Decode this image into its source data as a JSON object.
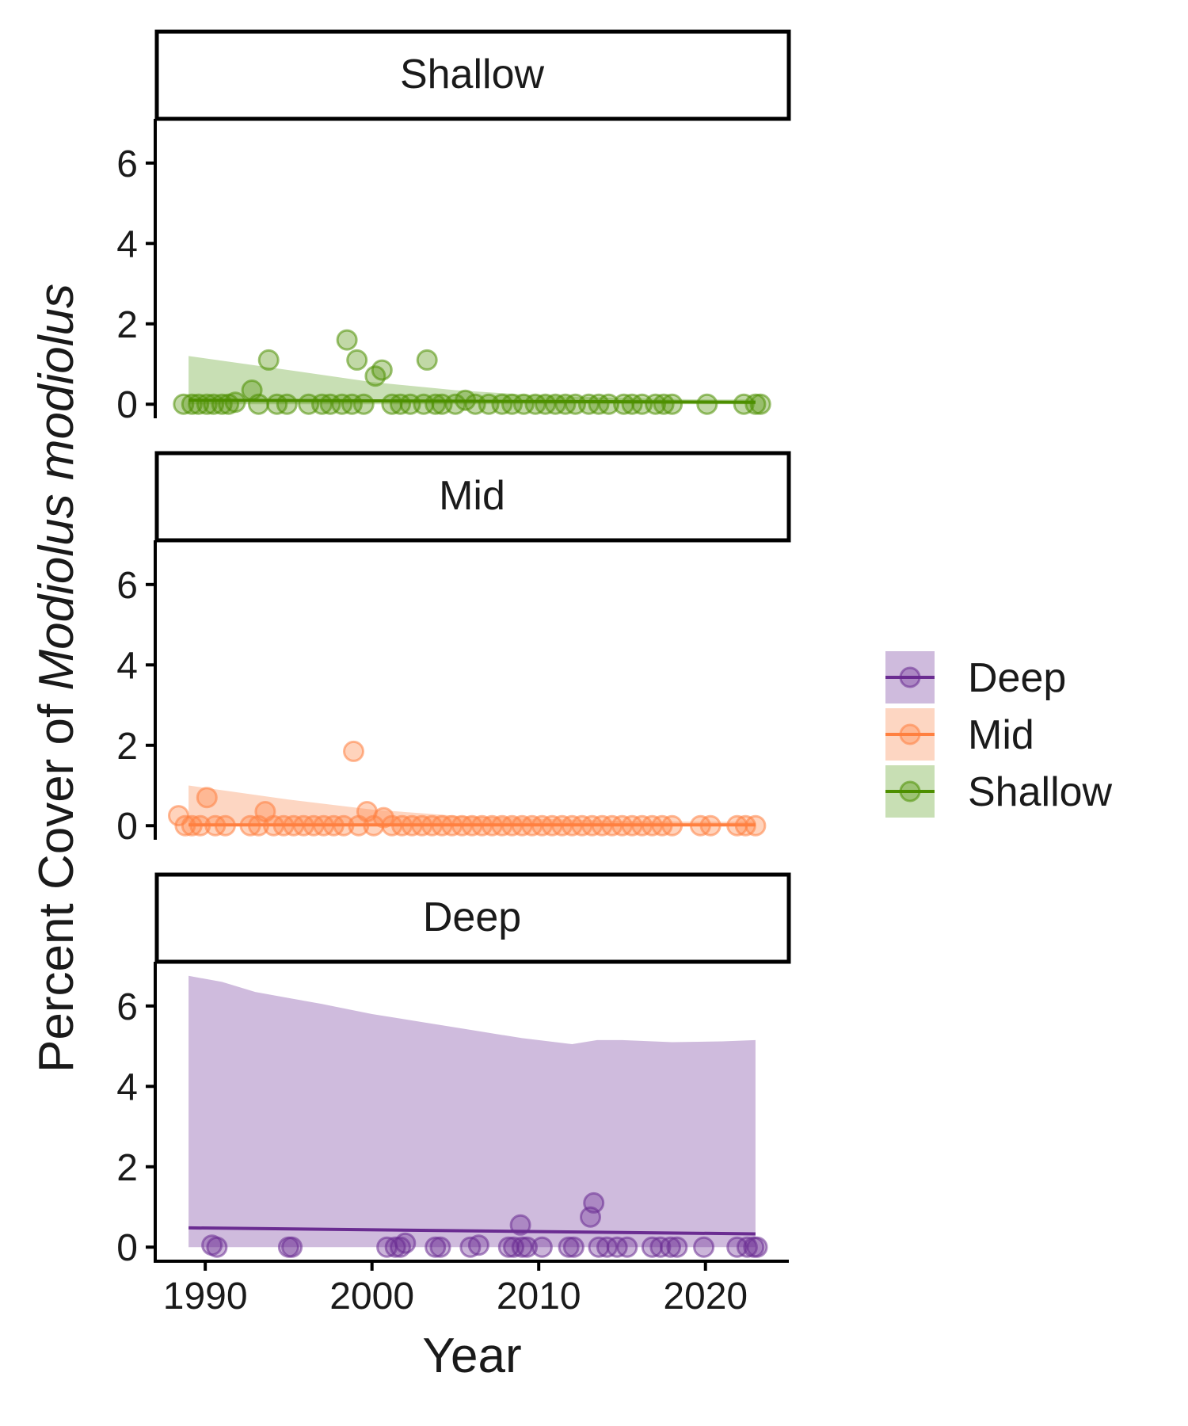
{
  "chart_data": {
    "type": "scatter",
    "xlabel": "Year",
    "ylabel_prefix": "Percent Cover of ",
    "ylabel_italic": "Modiolus modiolus",
    "xlim": [
      1987,
      2025
    ],
    "ylim": [
      -0.35,
      7.1
    ],
    "x_ticks": [
      1990,
      2000,
      2010,
      2020
    ],
    "y_ticks": [
      0,
      2,
      4,
      6
    ],
    "grid": false,
    "legend_position": "right",
    "legend": [
      {
        "label": "Deep",
        "color": "#6a2c91",
        "fill": "#cfbbdd"
      },
      {
        "label": "Mid",
        "color": "#ff8040",
        "fill": "#fdd6c2"
      },
      {
        "label": "Shallow",
        "color": "#4d8f00",
        "fill": "#c8dfb4"
      }
    ],
    "panels": [
      {
        "strip": "Shallow",
        "color": "#4d8f00",
        "fill": "#c8dfb4",
        "trend": [
          [
            1989,
            0.1
          ],
          [
            2023,
            0.05
          ]
        ],
        "ribbon_x": [
          1989,
          1995,
          2000,
          2005,
          2010,
          2015,
          2020,
          2023
        ],
        "ribbon_upper": [
          1.2,
          0.85,
          0.55,
          0.35,
          0.22,
          0.15,
          0.12,
          0.12
        ],
        "ribbon_lower": [
          0.0,
          0.0,
          0.0,
          0.0,
          0.0,
          0.0,
          0.0,
          0.0
        ],
        "points": [
          [
            1988.7,
            0
          ],
          [
            1989.2,
            0
          ],
          [
            1989.6,
            0
          ],
          [
            1990.1,
            0
          ],
          [
            1990.5,
            0
          ],
          [
            1991.0,
            0
          ],
          [
            1991.4,
            0
          ],
          [
            1991.8,
            0.05
          ],
          [
            1992.8,
            0.35
          ],
          [
            1993.2,
            0
          ],
          [
            1993.8,
            1.1
          ],
          [
            1994.3,
            0
          ],
          [
            1994.9,
            0
          ],
          [
            1996.2,
            0
          ],
          [
            1997.0,
            0
          ],
          [
            1997.5,
            0
          ],
          [
            1998.2,
            0
          ],
          [
            1998.8,
            0
          ],
          [
            1998.5,
            1.6
          ],
          [
            1999.1,
            1.1
          ],
          [
            1999.5,
            0
          ],
          [
            2000.2,
            0.7
          ],
          [
            2000.6,
            0.85
          ],
          [
            2001.2,
            0
          ],
          [
            2001.7,
            0
          ],
          [
            2002.3,
            0
          ],
          [
            2003.1,
            0
          ],
          [
            2003.3,
            1.1
          ],
          [
            2003.8,
            0
          ],
          [
            2004.2,
            0
          ],
          [
            2005.0,
            0
          ],
          [
            2005.6,
            0.1
          ],
          [
            2006.2,
            0
          ],
          [
            2007.0,
            0
          ],
          [
            2007.8,
            0
          ],
          [
            2008.4,
            0
          ],
          [
            2009.1,
            0
          ],
          [
            2009.8,
            0
          ],
          [
            2010.4,
            0
          ],
          [
            2011.0,
            0
          ],
          [
            2011.6,
            0
          ],
          [
            2012.2,
            0
          ],
          [
            2013.0,
            0
          ],
          [
            2013.6,
            0
          ],
          [
            2014.2,
            0
          ],
          [
            2015.1,
            0
          ],
          [
            2015.6,
            0
          ],
          [
            2016.2,
            0
          ],
          [
            2017.0,
            0
          ],
          [
            2017.5,
            0
          ],
          [
            2018.0,
            0
          ],
          [
            2020.1,
            0
          ],
          [
            2022.3,
            0
          ],
          [
            2023.0,
            0
          ],
          [
            2023.3,
            0
          ]
        ]
      },
      {
        "strip": "Mid",
        "color": "#ff8040",
        "fill": "#fdd6c2",
        "trend": [
          [
            1989,
            0.02
          ],
          [
            2023,
            0.02
          ]
        ],
        "ribbon_x": [
          1989,
          1995,
          2000,
          2005,
          2010,
          2015,
          2020,
          2023
        ],
        "ribbon_upper": [
          1.0,
          0.65,
          0.4,
          0.25,
          0.17,
          0.12,
          0.1,
          0.1
        ],
        "ribbon_lower": [
          0.0,
          0.0,
          0.0,
          0.0,
          0.0,
          0.0,
          0.0,
          0.0
        ],
        "points": [
          [
            1988.4,
            0.25
          ],
          [
            1988.8,
            0
          ],
          [
            1989.2,
            0
          ],
          [
            1989.7,
            0
          ],
          [
            1990.1,
            0.7
          ],
          [
            1990.6,
            0
          ],
          [
            1991.2,
            0
          ],
          [
            1992.7,
            0
          ],
          [
            1993.2,
            0
          ],
          [
            1993.6,
            0.35
          ],
          [
            1994.1,
            0
          ],
          [
            1994.7,
            0
          ],
          [
            1995.3,
            0
          ],
          [
            1995.9,
            0
          ],
          [
            1996.5,
            0
          ],
          [
            1997.1,
            0
          ],
          [
            1997.7,
            0
          ],
          [
            1998.3,
            0
          ],
          [
            1998.9,
            1.85
          ],
          [
            1999.2,
            0
          ],
          [
            1999.7,
            0.35
          ],
          [
            2000.1,
            0
          ],
          [
            2000.7,
            0.2
          ],
          [
            2001.2,
            0
          ],
          [
            2001.8,
            0
          ],
          [
            2002.4,
            0
          ],
          [
            2003.0,
            0
          ],
          [
            2003.6,
            0
          ],
          [
            2004.2,
            0
          ],
          [
            2004.8,
            0
          ],
          [
            2005.4,
            0
          ],
          [
            2006.0,
            0
          ],
          [
            2006.6,
            0
          ],
          [
            2007.2,
            0
          ],
          [
            2007.8,
            0
          ],
          [
            2008.4,
            0
          ],
          [
            2009.0,
            0
          ],
          [
            2009.6,
            0
          ],
          [
            2010.2,
            0
          ],
          [
            2010.8,
            0
          ],
          [
            2011.4,
            0
          ],
          [
            2012.0,
            0
          ],
          [
            2012.6,
            0
          ],
          [
            2013.2,
            0
          ],
          [
            2013.8,
            0
          ],
          [
            2014.4,
            0
          ],
          [
            2015.0,
            0
          ],
          [
            2015.6,
            0
          ],
          [
            2016.2,
            0
          ],
          [
            2016.8,
            0
          ],
          [
            2017.4,
            0
          ],
          [
            2018.0,
            0
          ],
          [
            2019.7,
            0
          ],
          [
            2020.3,
            0
          ],
          [
            2021.9,
            0
          ],
          [
            2022.4,
            0
          ],
          [
            2023.0,
            0
          ]
        ]
      },
      {
        "strip": "Deep",
        "color": "#6a2c91",
        "fill": "#cfbbdd",
        "trend": [
          [
            1989,
            0.48
          ],
          [
            2023,
            0.33
          ]
        ],
        "ribbon_x": [
          1989,
          1991,
          1993,
          1995,
          1997,
          2000,
          2003,
          2006,
          2009,
          2012,
          2013.5,
          2015,
          2018,
          2021,
          2023
        ],
        "ribbon_upper": [
          6.75,
          6.6,
          6.35,
          6.2,
          6.05,
          5.8,
          5.6,
          5.4,
          5.2,
          5.05,
          5.15,
          5.15,
          5.1,
          5.12,
          5.15
        ],
        "ribbon_lower": [
          0.0,
          0.0,
          0.0,
          0.0,
          0.0,
          0.0,
          0.0,
          0.0,
          0.0,
          0.0,
          0.0,
          0.0,
          0.0,
          0.0,
          0.0
        ],
        "points": [
          [
            1990.4,
            0.05
          ],
          [
            1990.7,
            0
          ],
          [
            1995.0,
            0
          ],
          [
            1995.2,
            0
          ],
          [
            2000.9,
            0
          ],
          [
            2001.4,
            0
          ],
          [
            2001.7,
            0
          ],
          [
            2002.0,
            0.1
          ],
          [
            2003.8,
            0
          ],
          [
            2004.1,
            0
          ],
          [
            2005.9,
            0
          ],
          [
            2006.4,
            0.05
          ],
          [
            2008.2,
            0
          ],
          [
            2008.5,
            0
          ],
          [
            2008.9,
            0.55
          ],
          [
            2009.0,
            0
          ],
          [
            2009.3,
            0
          ],
          [
            2010.2,
            0
          ],
          [
            2011.8,
            0
          ],
          [
            2012.1,
            0
          ],
          [
            2013.1,
            0.75
          ],
          [
            2013.3,
            1.1
          ],
          [
            2013.6,
            0
          ],
          [
            2014.1,
            0
          ],
          [
            2014.7,
            0
          ],
          [
            2015.3,
            0
          ],
          [
            2016.8,
            0
          ],
          [
            2017.3,
            0
          ],
          [
            2017.9,
            0
          ],
          [
            2018.3,
            0
          ],
          [
            2019.9,
            0
          ],
          [
            2021.9,
            0
          ],
          [
            2022.5,
            0
          ],
          [
            2022.9,
            0
          ],
          [
            2023.1,
            0
          ]
        ]
      }
    ]
  }
}
